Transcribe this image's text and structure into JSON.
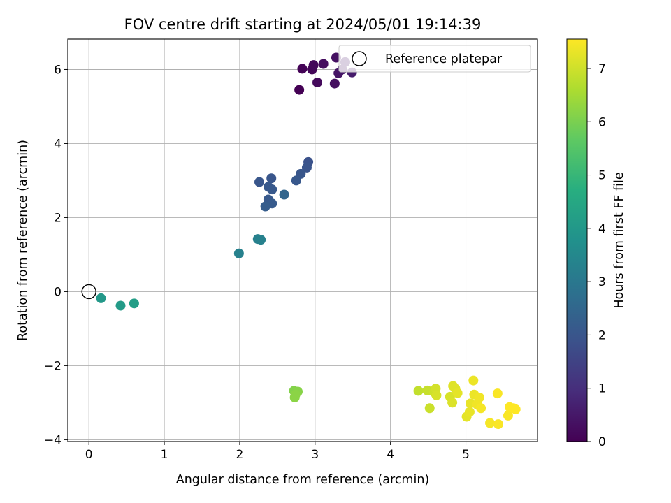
{
  "chart_data": {
    "type": "scatter",
    "title": "FOV centre drift starting at 2024/05/01 19:14:39",
    "xlabel": "Angular distance from reference (arcmin)",
    "ylabel": "Rotation from reference (arcmin)",
    "xlim": [
      -0.28,
      5.95
    ],
    "ylim": [
      -4.05,
      6.82
    ],
    "xticks": [
      0,
      1,
      2,
      3,
      4,
      5
    ],
    "yticks": [
      -4,
      -2,
      0,
      2,
      4,
      6
    ],
    "xtick_labels": [
      "0",
      "1",
      "2",
      "3",
      "4",
      "5"
    ],
    "ytick_labels": [
      "−4",
      "−2",
      "0",
      "2",
      "4",
      "6"
    ],
    "grid": true,
    "colormap": "viridis",
    "colorbar": {
      "label": "Hours from first FF file",
      "range": [
        0,
        7.55
      ],
      "ticks": [
        0,
        1,
        2,
        3,
        4,
        5,
        6,
        7
      ],
      "tick_labels": [
        "0",
        "1",
        "2",
        "3",
        "4",
        "5",
        "6",
        "7"
      ]
    },
    "legend": {
      "position": "top-right",
      "entries": [
        "Reference platepar"
      ]
    },
    "reference_point": {
      "x": 0,
      "y": 0,
      "label": "Reference platepar"
    },
    "points": [
      {
        "x": 2.79,
        "y": 5.45,
        "c": 0.0
      },
      {
        "x": 2.83,
        "y": 6.02,
        "c": 0.05
      },
      {
        "x": 2.96,
        "y": 6.0,
        "c": 0.1
      },
      {
        "x": 2.98,
        "y": 6.12,
        "c": 0.15
      },
      {
        "x": 3.03,
        "y": 5.65,
        "c": 0.2
      },
      {
        "x": 3.11,
        "y": 6.15,
        "c": 0.25
      },
      {
        "x": 3.26,
        "y": 5.62,
        "c": 0.3
      },
      {
        "x": 3.28,
        "y": 6.32,
        "c": 0.35
      },
      {
        "x": 3.31,
        "y": 5.9,
        "c": 0.4
      },
      {
        "x": 3.36,
        "y": 6.0,
        "c": 0.45
      },
      {
        "x": 3.4,
        "y": 6.2,
        "c": 0.5
      },
      {
        "x": 3.49,
        "y": 5.92,
        "c": 0.55
      },
      {
        "x": 2.91,
        "y": 3.5,
        "c": 1.9
      },
      {
        "x": 2.89,
        "y": 3.35,
        "c": 1.95
      },
      {
        "x": 2.81,
        "y": 3.18,
        "c": 2.0
      },
      {
        "x": 2.75,
        "y": 3.0,
        "c": 2.05
      },
      {
        "x": 2.42,
        "y": 3.06,
        "c": 2.0
      },
      {
        "x": 2.26,
        "y": 2.96,
        "c": 2.0
      },
      {
        "x": 2.38,
        "y": 2.83,
        "c": 2.05
      },
      {
        "x": 2.43,
        "y": 2.76,
        "c": 2.1
      },
      {
        "x": 2.38,
        "y": 2.49,
        "c": 2.1
      },
      {
        "x": 2.43,
        "y": 2.38,
        "c": 2.15
      },
      {
        "x": 2.34,
        "y": 2.3,
        "c": 2.2
      },
      {
        "x": 2.59,
        "y": 2.62,
        "c": 2.45
      },
      {
        "x": 2.24,
        "y": 1.42,
        "c": 3.25
      },
      {
        "x": 2.28,
        "y": 1.4,
        "c": 3.3
      },
      {
        "x": 1.99,
        "y": 1.03,
        "c": 3.3
      },
      {
        "x": 0.16,
        "y": -0.18,
        "c": 4.0
      },
      {
        "x": 0.42,
        "y": -0.38,
        "c": 4.1
      },
      {
        "x": 0.6,
        "y": -0.32,
        "c": 4.2
      },
      {
        "x": 2.72,
        "y": -2.68,
        "c": 6.1
      },
      {
        "x": 2.77,
        "y": -2.7,
        "c": 6.15
      },
      {
        "x": 2.74,
        "y": -2.78,
        "c": 6.2
      },
      {
        "x": 2.73,
        "y": -2.86,
        "c": 6.2
      },
      {
        "x": 4.37,
        "y": -2.68,
        "c": 6.85
      },
      {
        "x": 4.49,
        "y": -2.67,
        "c": 6.9
      },
      {
        "x": 4.52,
        "y": -3.15,
        "c": 6.95
      },
      {
        "x": 4.58,
        "y": -2.72,
        "c": 7.0
      },
      {
        "x": 4.6,
        "y": -2.62,
        "c": 7.05
      },
      {
        "x": 4.61,
        "y": -2.8,
        "c": 7.1
      },
      {
        "x": 4.79,
        "y": -2.84,
        "c": 7.1
      },
      {
        "x": 4.82,
        "y": -3.0,
        "c": 7.15
      },
      {
        "x": 4.83,
        "y": -2.55,
        "c": 7.2
      },
      {
        "x": 4.86,
        "y": -2.62,
        "c": 7.2
      },
      {
        "x": 4.89,
        "y": -2.74,
        "c": 7.25
      },
      {
        "x": 5.01,
        "y": -3.38,
        "c": 7.25
      },
      {
        "x": 5.05,
        "y": -3.25,
        "c": 7.3
      },
      {
        "x": 5.06,
        "y": -3.02,
        "c": 7.3
      },
      {
        "x": 5.1,
        "y": -2.4,
        "c": 7.35
      },
      {
        "x": 5.11,
        "y": -2.78,
        "c": 7.35
      },
      {
        "x": 5.15,
        "y": -3.05,
        "c": 7.4
      },
      {
        "x": 5.18,
        "y": -2.86,
        "c": 7.4
      },
      {
        "x": 5.2,
        "y": -3.15,
        "c": 7.45
      },
      {
        "x": 5.32,
        "y": -3.55,
        "c": 7.45
      },
      {
        "x": 5.42,
        "y": -2.75,
        "c": 7.5
      },
      {
        "x": 5.43,
        "y": -3.58,
        "c": 7.5
      },
      {
        "x": 5.56,
        "y": -3.35,
        "c": 7.5
      },
      {
        "x": 5.58,
        "y": -3.12,
        "c": 7.55
      },
      {
        "x": 5.63,
        "y": -3.15,
        "c": 7.55
      },
      {
        "x": 5.66,
        "y": -3.18,
        "c": 7.55
      }
    ]
  }
}
